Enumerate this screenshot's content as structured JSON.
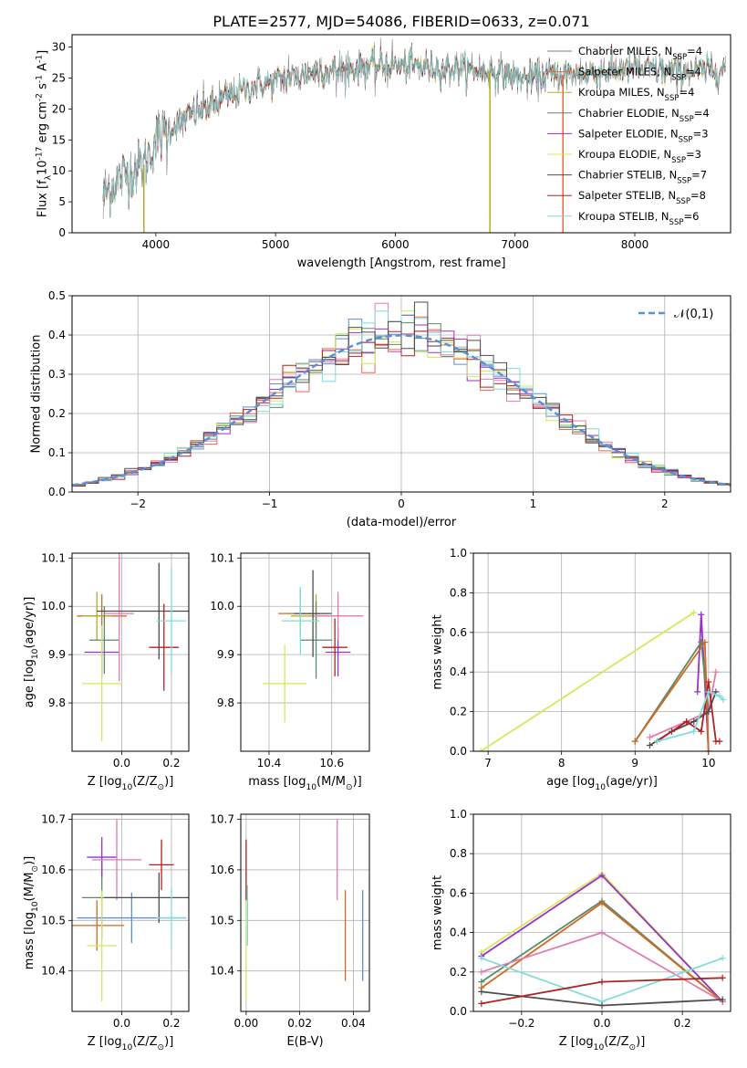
{
  "figure_title": "PLATE=2577, MJD=54086, FIBERID=0633, z=0.071",
  "colors": {
    "c0": "#7f7f7f",
    "c1": "#e6694d",
    "c2": "#b8a82a",
    "c3": "#5a8a6a",
    "c4": "#9b30c8",
    "c5": "#d4e85a",
    "c6": "#4d4d4d",
    "c7": "#b22222",
    "c8": "#7fdcdc",
    "c9": "#5b8fd6",
    "c10": "#e07ab0",
    "c11": "#d2691e",
    "normal": "#5b8fd6"
  },
  "chart_data": [
    {
      "id": "spectrum",
      "type": "line",
      "xlabel": "wavelength [Angstrom, rest frame]",
      "ylabel": "Flux [f$_\\lambda$10$^{-17}$ erg cm$^{-2}$ s$^{-1}$ A$^{-1}$]",
      "xlim": [
        3300,
        8800
      ],
      "ylim": [
        0,
        32
      ],
      "xticks": [
        4000,
        5000,
        6000,
        7000,
        8000
      ],
      "yticks": [
        0,
        5,
        10,
        15,
        20,
        25,
        30
      ],
      "legend_position": "right",
      "legend": [
        {
          "label": "Chabrier MILES, N",
          "sub": "SSP",
          "value": "=4",
          "color": "c0"
        },
        {
          "label": "Salpeter MILES, N",
          "sub": "SSP",
          "value": "=4",
          "color": "c1"
        },
        {
          "label": "Kroupa MILES, N",
          "sub": "SSP",
          "value": "=4",
          "color": "c2"
        },
        {
          "label": "Chabrier ELODIE, N",
          "sub": "SSP",
          "value": "=4",
          "color": "c3"
        },
        {
          "label": "Salpeter ELODIE, N",
          "sub": "SSP",
          "value": "=3",
          "color": "c4"
        },
        {
          "label": "Kroupa ELODIE, N",
          "sub": "SSP",
          "value": "=3",
          "color": "c5"
        },
        {
          "label": "Chabrier STELIB, N",
          "sub": "SSP",
          "value": "=7",
          "color": "c6"
        },
        {
          "label": "Salpeter STELIB, N",
          "sub": "SSP",
          "value": "=8",
          "color": "c7"
        },
        {
          "label": "Kroupa STELIB, N",
          "sub": "SSP",
          "value": "=6",
          "color": "c8"
        }
      ],
      "continuum": {
        "x": [
          3560,
          3700,
          3900,
          4000,
          4200,
          4500,
          4800,
          5000,
          5300,
          5600,
          5900,
          6200,
          6500,
          6800,
          7100,
          7400,
          7700,
          8000,
          8300,
          8500,
          8750
        ],
        "y": [
          6,
          9,
          11,
          15,
          18,
          21,
          23.5,
          24.5,
          26,
          26.5,
          27,
          27,
          26.5,
          26,
          25,
          25.5,
          26,
          26.5,
          26,
          26,
          26.5
        ]
      },
      "data_range": [
        3560,
        8760
      ],
      "dropouts": [
        {
          "x": 3900,
          "color": "c2"
        },
        {
          "x": 6790,
          "color": "c2"
        },
        {
          "x": 7400,
          "color": "c1"
        }
      ]
    },
    {
      "id": "residuals",
      "type": "bar",
      "xlabel": "(data-model)/error",
      "ylabel": "Normed distribution",
      "xlim": [
        -2.5,
        2.5
      ],
      "ylim": [
        0,
        0.5
      ],
      "xticks": [
        -2,
        -1,
        0,
        1,
        2
      ],
      "yticks": [
        0.0,
        0.1,
        0.2,
        0.3,
        0.4,
        0.5
      ],
      "grid": true,
      "bin_edges_start": -2.5,
      "bin_width": 0.1,
      "legend_position": "top-right",
      "normal_label": "$\\mathcal{N}(0,1)$",
      "series_colors": [
        "c9",
        "c1",
        "c3",
        "c4",
        "c5",
        "c10",
        "c7",
        "c8",
        "c6"
      ]
    },
    {
      "id": "age_vs_Z",
      "type": "scatter",
      "xlabel": "Z [log$_{10}$(Z/Z$_\\odot$)]",
      "ylabel": "age  [log$_{10}$(age/yr)]",
      "xlim": [
        -0.2,
        0.27
      ],
      "ylim": [
        9.7,
        10.11
      ],
      "xticks": [
        0.0,
        0.2
      ],
      "yticks": [
        9.8,
        9.9,
        10.0,
        10.1
      ],
      "grid": true,
      "points": [
        {
          "x": -0.08,
          "y": 9.98,
          "xerr": 0.1,
          "yerr": 0.045,
          "color": "c11"
        },
        {
          "x": -0.1,
          "y": 9.98,
          "xerr": 0.06,
          "yerr": 0.05,
          "color": "c2"
        },
        {
          "x": -0.07,
          "y": 9.93,
          "xerr": 0.06,
          "yerr": 0.07,
          "color": "c3"
        },
        {
          "x": -0.08,
          "y": 9.905,
          "xerr": 0.07,
          "yerr": 0.05,
          "color": "c4"
        },
        {
          "x": -0.08,
          "y": 9.84,
          "xerr": 0.08,
          "yerr": 0.12,
          "color": "c5"
        },
        {
          "x": -0.01,
          "y": 9.985,
          "xerr": 0.06,
          "yerr": 0.14,
          "color": "c10"
        },
        {
          "x": 0.15,
          "y": 9.99,
          "xerr": 0.25,
          "yerr": 0.1,
          "color": "c6"
        },
        {
          "x": 0.17,
          "y": 9.915,
          "xerr": 0.06,
          "yerr": 0.09,
          "color": "c7"
        },
        {
          "x": 0.2,
          "y": 9.97,
          "xerr": 0.06,
          "yerr": 0.11,
          "color": "c8"
        }
      ]
    },
    {
      "id": "age_vs_mass",
      "type": "scatter",
      "xlabel": "mass [log$_{10}$(M/M$_\\odot$)]",
      "ylabel": "",
      "xlim": [
        10.31,
        10.72
      ],
      "ylim": [
        9.7,
        10.11
      ],
      "xticks": [
        10.4,
        10.6
      ],
      "yticks": [
        9.8,
        9.9,
        10.0,
        10.1
      ],
      "grid": true,
      "points": [
        {
          "x": 10.5,
          "y": 9.985,
          "xerr": 0.07,
          "yerr": 0.05,
          "color": "c11"
        },
        {
          "x": 10.55,
          "y": 9.98,
          "xerr": 0.08,
          "yerr": 0.045,
          "color": "c2"
        },
        {
          "x": 10.55,
          "y": 9.93,
          "xerr": 0.05,
          "yerr": 0.08,
          "color": "c3"
        },
        {
          "x": 10.62,
          "y": 9.905,
          "xerr": 0.04,
          "yerr": 0.05,
          "color": "c4"
        },
        {
          "x": 10.45,
          "y": 9.84,
          "xerr": 0.07,
          "yerr": 0.08,
          "color": "c5"
        },
        {
          "x": 10.62,
          "y": 9.98,
          "xerr": 0.08,
          "yerr": 0.05,
          "color": "c10"
        },
        {
          "x": 10.54,
          "y": 9.985,
          "xerr": 0.06,
          "yerr": 0.09,
          "color": "c6"
        },
        {
          "x": 10.61,
          "y": 9.915,
          "xerr": 0.04,
          "yerr": 0.06,
          "color": "c7"
        },
        {
          "x": 10.5,
          "y": 9.97,
          "xerr": 0.06,
          "yerr": 0.07,
          "color": "c8"
        }
      ]
    },
    {
      "id": "weight_vs_age",
      "type": "line",
      "xlabel": "age  [log$_{10}$(age/yr)]",
      "ylabel": "mass weight",
      "xlim": [
        6.8,
        10.3
      ],
      "ylim": [
        0,
        1.0
      ],
      "xticks": [
        7,
        8,
        9,
        10
      ],
      "yticks": [
        0.0,
        0.2,
        0.4,
        0.6,
        0.8,
        1.0
      ],
      "grid": true,
      "series": [
        {
          "color": "c5",
          "x": [
            6.9,
            9.8
          ],
          "y": [
            0.0,
            0.7
          ]
        },
        {
          "color": "c4",
          "x": [
            9.85,
            9.9,
            10.0
          ],
          "y": [
            0.3,
            0.69,
            0.0
          ]
        },
        {
          "color": "c3",
          "x": [
            9.0,
            9.9,
            10.0
          ],
          "y": [
            0.05,
            0.55,
            0.2
          ]
        },
        {
          "color": "c11",
          "x": [
            9.0,
            9.95,
            10.0
          ],
          "y": [
            0.05,
            0.55,
            0.0
          ]
        },
        {
          "color": "c10",
          "x": [
            9.2,
            9.7,
            10.0,
            10.1
          ],
          "y": [
            0.07,
            0.15,
            0.2,
            0.4
          ]
        },
        {
          "color": "c6",
          "x": [
            9.2,
            9.5,
            9.8,
            10.0,
            10.1
          ],
          "y": [
            0.03,
            0.1,
            0.15,
            0.2,
            0.3
          ]
        },
        {
          "color": "c7",
          "x": [
            9.3,
            9.7,
            9.9,
            10.0,
            10.1,
            10.15
          ],
          "y": [
            0.05,
            0.15,
            0.1,
            0.35,
            0.05,
            0.05
          ]
        },
        {
          "color": "c8",
          "x": [
            9.3,
            9.8,
            10.0,
            10.15,
            10.2
          ],
          "y": [
            0.05,
            0.1,
            0.3,
            0.28,
            0.26
          ]
        }
      ]
    },
    {
      "id": "mass_vs_Z",
      "type": "scatter",
      "xlabel": "Z [log$_{10}$(Z/Z$_\\odot$)]",
      "ylabel": "mass [log$_{10}$(M/M$_\\odot$)]",
      "xlim": [
        -0.2,
        0.27
      ],
      "ylim": [
        10.32,
        10.71
      ],
      "xticks": [
        0.0,
        0.2
      ],
      "yticks": [
        10.4,
        10.5,
        10.6,
        10.7
      ],
      "grid": true,
      "points": [
        {
          "x": -0.1,
          "y": 10.49,
          "xerr": 0.11,
          "yerr": 0.05,
          "color": "c11"
        },
        {
          "x": 0.04,
          "y": 10.505,
          "xerr": 0.22,
          "yerr": 0.05,
          "color": "c9"
        },
        {
          "x": -0.08,
          "y": 10.545,
          "xerr": 0.08,
          "yerr": 0.08,
          "color": "c3"
        },
        {
          "x": -0.08,
          "y": 10.625,
          "xerr": 0.06,
          "yerr": 0.04,
          "color": "c4"
        },
        {
          "x": -0.08,
          "y": 10.45,
          "xerr": 0.06,
          "yerr": 0.11,
          "color": "c5"
        },
        {
          "x": -0.02,
          "y": 10.62,
          "xerr": 0.1,
          "yerr": 0.08,
          "color": "c10"
        },
        {
          "x": 0.15,
          "y": 10.545,
          "xerr": 0.22,
          "yerr": 0.05,
          "color": "c6"
        },
        {
          "x": 0.16,
          "y": 10.61,
          "xerr": 0.05,
          "yerr": 0.05,
          "color": "c7"
        },
        {
          "x": 0.2,
          "y": 10.505,
          "xerr": 0.06,
          "yerr": 0.06,
          "color": "c8"
        }
      ]
    },
    {
      "id": "mass_vs_ebv",
      "type": "scatter",
      "xlabel": "E(B-V)",
      "ylabel": "",
      "xlim": [
        -0.002,
        0.046
      ],
      "ylim": [
        10.32,
        10.71
      ],
      "xticks": [
        0.0,
        0.02,
        0.04
      ],
      "yticks": [
        10.4,
        10.5,
        10.6,
        10.7
      ],
      "grid": true,
      "points": [
        {
          "x": 0.0,
          "y": 10.5,
          "xerr": 0,
          "yerr": 0.16,
          "color": "c5"
        },
        {
          "x": 0.0,
          "y": 10.6,
          "xerr": 0,
          "yerr": 0.06,
          "color": "c7"
        },
        {
          "x": 0.0005,
          "y": 10.51,
          "xerr": 0,
          "yerr": 0.06,
          "color": "c8"
        },
        {
          "x": 0.034,
          "y": 10.62,
          "xerr": 0,
          "yerr": 0.08,
          "color": "c10"
        },
        {
          "x": 0.037,
          "y": 10.47,
          "xerr": 0,
          "yerr": 0.09,
          "color": "c11"
        },
        {
          "x": 0.0435,
          "y": 10.47,
          "xerr": 0,
          "yerr": 0.09,
          "color": "c9"
        }
      ]
    },
    {
      "id": "weight_vs_Z",
      "type": "line",
      "xlabel": "Z [log$_{10}$(Z/Z$_\\odot$)]",
      "ylabel": "mass weight",
      "xlim": [
        -0.32,
        0.32
      ],
      "ylim": [
        0,
        1.0
      ],
      "xticks": [
        -0.2,
        0.0,
        0.2
      ],
      "yticks": [
        0.0,
        0.2,
        0.4,
        0.6,
        0.8,
        1.0
      ],
      "grid": true,
      "series": [
        {
          "color": "c5",
          "x": [
            -0.3,
            0.0,
            0.3
          ],
          "y": [
            0.3,
            0.7,
            0.05
          ]
        },
        {
          "color": "c4",
          "x": [
            -0.3,
            0.0,
            0.3
          ],
          "y": [
            0.28,
            0.69,
            0.05
          ]
        },
        {
          "color": "c3",
          "x": [
            -0.3,
            0.0,
            0.3
          ],
          "y": [
            0.15,
            0.56,
            0.05
          ]
        },
        {
          "color": "c11",
          "x": [
            -0.3,
            0.0,
            0.3
          ],
          "y": [
            0.12,
            0.55,
            0.05
          ]
        },
        {
          "color": "c10",
          "x": [
            -0.3,
            0.0,
            0.3
          ],
          "y": [
            0.2,
            0.4,
            0.05
          ]
        },
        {
          "color": "c8",
          "x": [
            -0.3,
            0.0,
            0.3
          ],
          "y": [
            0.27,
            0.05,
            0.27
          ]
        },
        {
          "color": "c6",
          "x": [
            -0.3,
            0.0,
            0.3
          ],
          "y": [
            0.1,
            0.03,
            0.06
          ]
        },
        {
          "color": "c7",
          "x": [
            -0.3,
            0.0,
            0.3
          ],
          "y": [
            0.04,
            0.15,
            0.17
          ]
        }
      ]
    }
  ]
}
